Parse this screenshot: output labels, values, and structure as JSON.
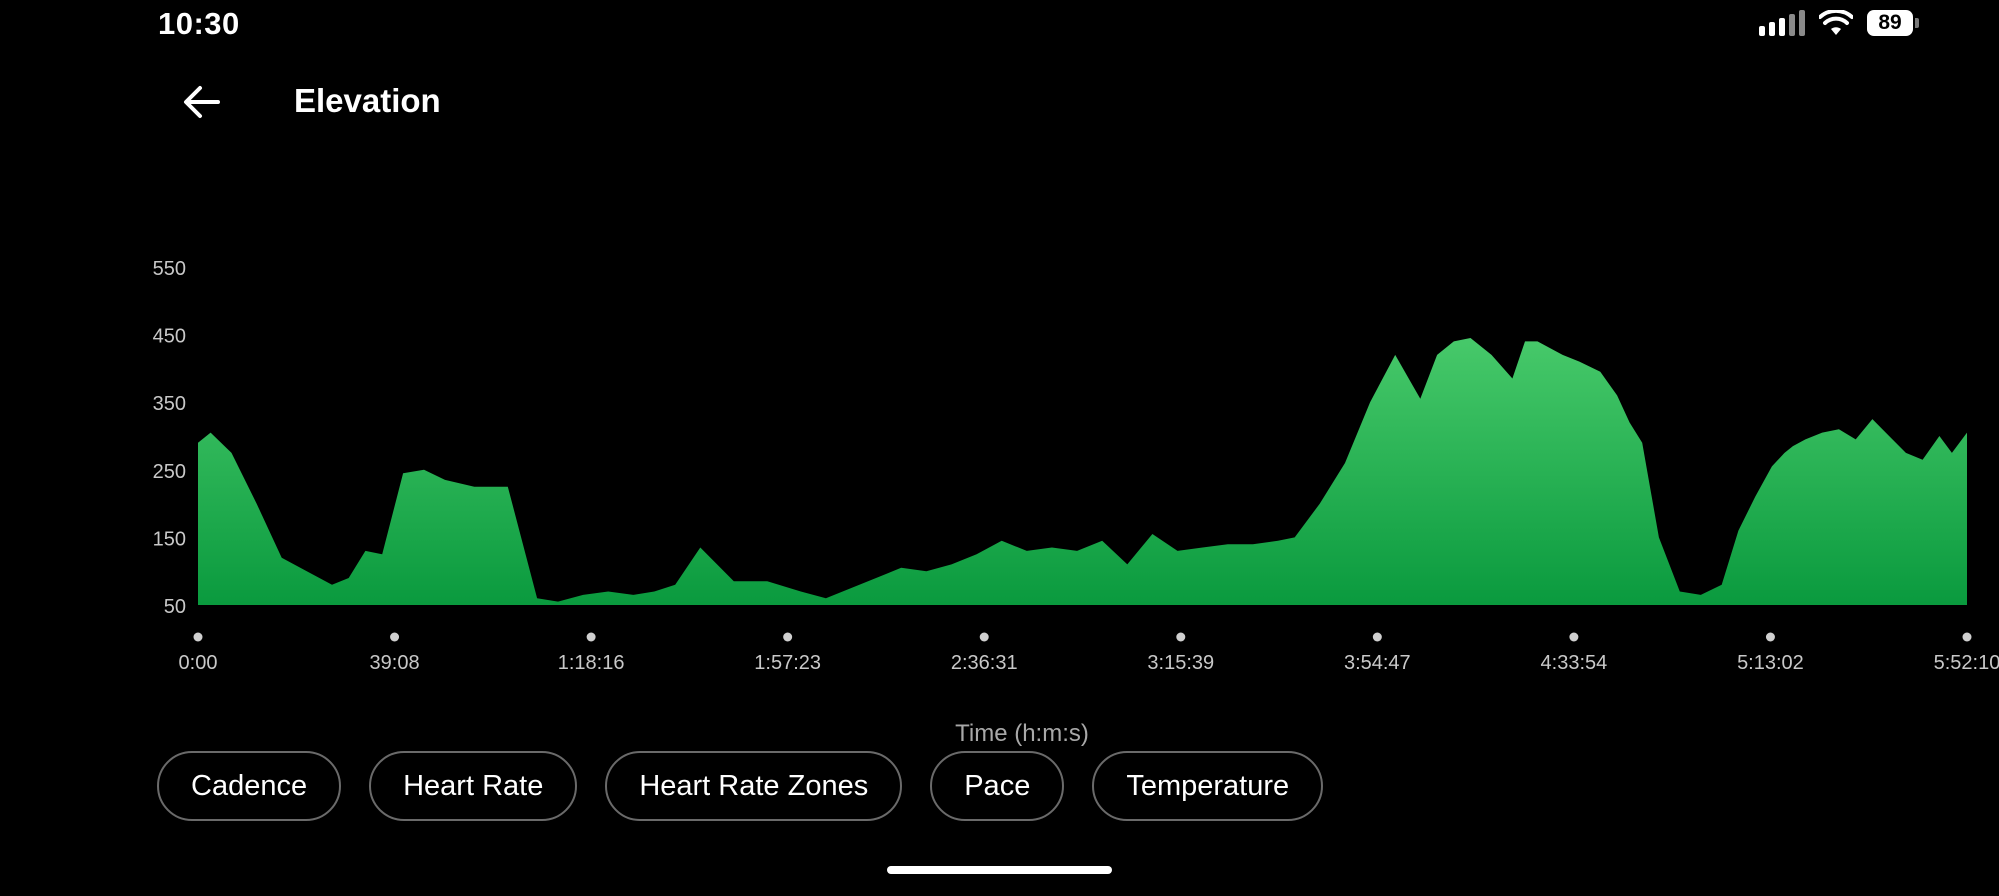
{
  "status_bar": {
    "time": "10:30",
    "battery_level": "89",
    "icons": [
      "cellular-signal-icon",
      "wifi-icon",
      "battery-icon"
    ]
  },
  "header": {
    "back_icon": "arrow-left-icon",
    "title": "Elevation"
  },
  "colors": {
    "background": "#000000",
    "area_top": "#47c96a",
    "area_bottom": "#0a9a3e",
    "chip_border": "#6a6a6a",
    "muted_text": "#a8a8a8"
  },
  "chart_data": {
    "type": "area",
    "title": "Elevation",
    "xlabel": "Time (h:m:s)",
    "ylabel": "",
    "ylim": [
      50,
      550
    ],
    "yticks": [
      550,
      450,
      350,
      250,
      150,
      50
    ],
    "xticks": [
      "0:00",
      "39:08",
      "1:18:16",
      "1:57:23",
      "2:36:31",
      "3:15:39",
      "3:54:47",
      "4:33:54",
      "5:13:02",
      "5:52:10"
    ],
    "xlim_seconds": [
      0,
      21130
    ],
    "grid": false,
    "series": [
      {
        "x_seconds": [
          0,
          150,
          400,
          700,
          1000,
          1300,
          1600,
          1800,
          2000,
          2200,
          2450,
          2700,
          2950,
          3300,
          3700,
          4050,
          4300,
          4600,
          4900,
          5200,
          5450,
          5700,
          6000,
          6400,
          6800,
          7200,
          7500,
          7800,
          8100,
          8400,
          8700,
          9000,
          9300,
          9600,
          9900,
          10200,
          10500,
          10800,
          11100,
          11400,
          11700,
          12000,
          12300,
          12600,
          12900,
          13100,
          13400,
          13700,
          14000,
          14300,
          14600,
          14800,
          15000,
          15200,
          15450,
          15700,
          15850,
          16000,
          16300,
          16500,
          16750,
          16950,
          17100,
          17250,
          17450,
          17700,
          17950,
          18200,
          18400,
          18600,
          18800,
          18950,
          19050,
          19200,
          19400,
          19600,
          19800,
          20000,
          20200,
          20400,
          20600,
          20800,
          20950,
          21130
        ],
        "values": [
          290,
          305,
          275,
          200,
          120,
          100,
          80,
          90,
          130,
          125,
          245,
          250,
          235,
          225,
          225,
          60,
          55,
          65,
          70,
          65,
          70,
          80,
          135,
          85,
          85,
          70,
          60,
          75,
          90,
          105,
          100,
          110,
          125,
          145,
          130,
          135,
          130,
          145,
          110,
          155,
          130,
          135,
          140,
          140,
          145,
          150,
          200,
          260,
          350,
          420,
          355,
          420,
          440,
          445,
          420,
          385,
          440,
          440,
          420,
          410,
          395,
          360,
          320,
          290,
          150,
          70,
          65,
          80,
          160,
          210,
          255,
          275,
          285,
          295,
          305,
          310,
          295,
          325,
          300,
          275,
          265,
          300,
          275,
          305
        ]
      }
    ]
  },
  "filter_chips": [
    {
      "label": "Cadence"
    },
    {
      "label": "Heart Rate"
    },
    {
      "label": "Heart Rate Zones"
    },
    {
      "label": "Pace"
    },
    {
      "label": "Temperature"
    }
  ]
}
